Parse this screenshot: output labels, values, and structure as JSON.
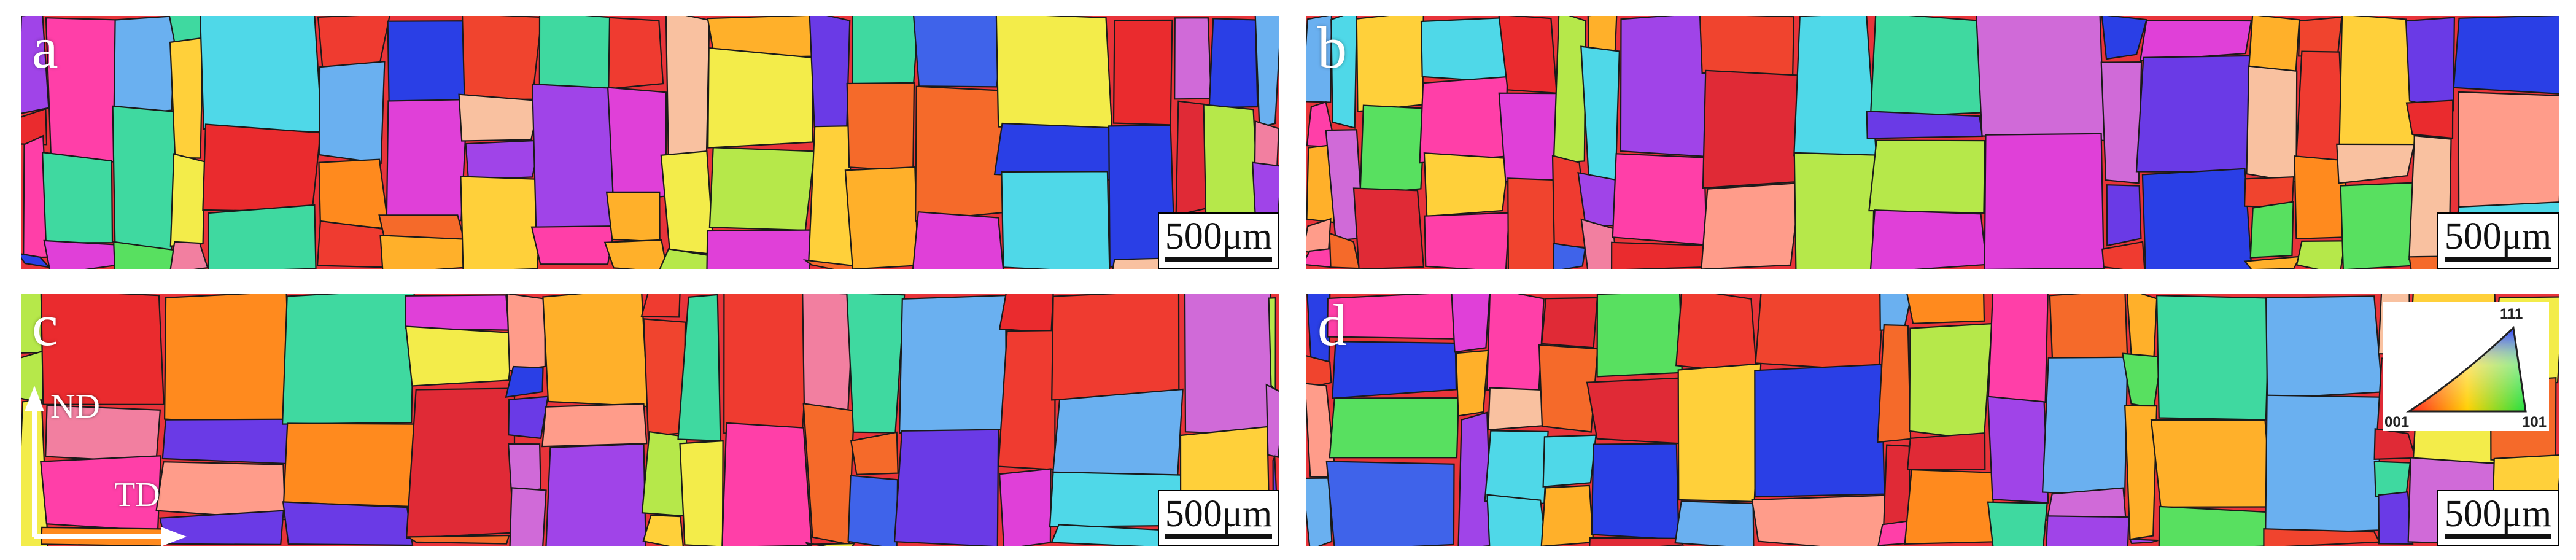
{
  "panels": [
    {
      "id": "a",
      "letter": "a",
      "scalebar": "500μm"
    },
    {
      "id": "b",
      "letter": "b",
      "scalebar": "500μm"
    },
    {
      "id": "c",
      "letter": "c",
      "scalebar": "500μm"
    },
    {
      "id": "d",
      "letter": "d",
      "scalebar": "500μm"
    }
  ],
  "axes": {
    "nd": "ND",
    "td": "TD"
  },
  "ipf_legend": {
    "corner_111": "111",
    "corner_001": "001",
    "corner_101": "101"
  },
  "colors": {
    "001_red": "#ea2b2e",
    "101_green": "#39e05a",
    "111_blue": "#2a3fe6",
    "border": "#1a1a1a"
  }
}
